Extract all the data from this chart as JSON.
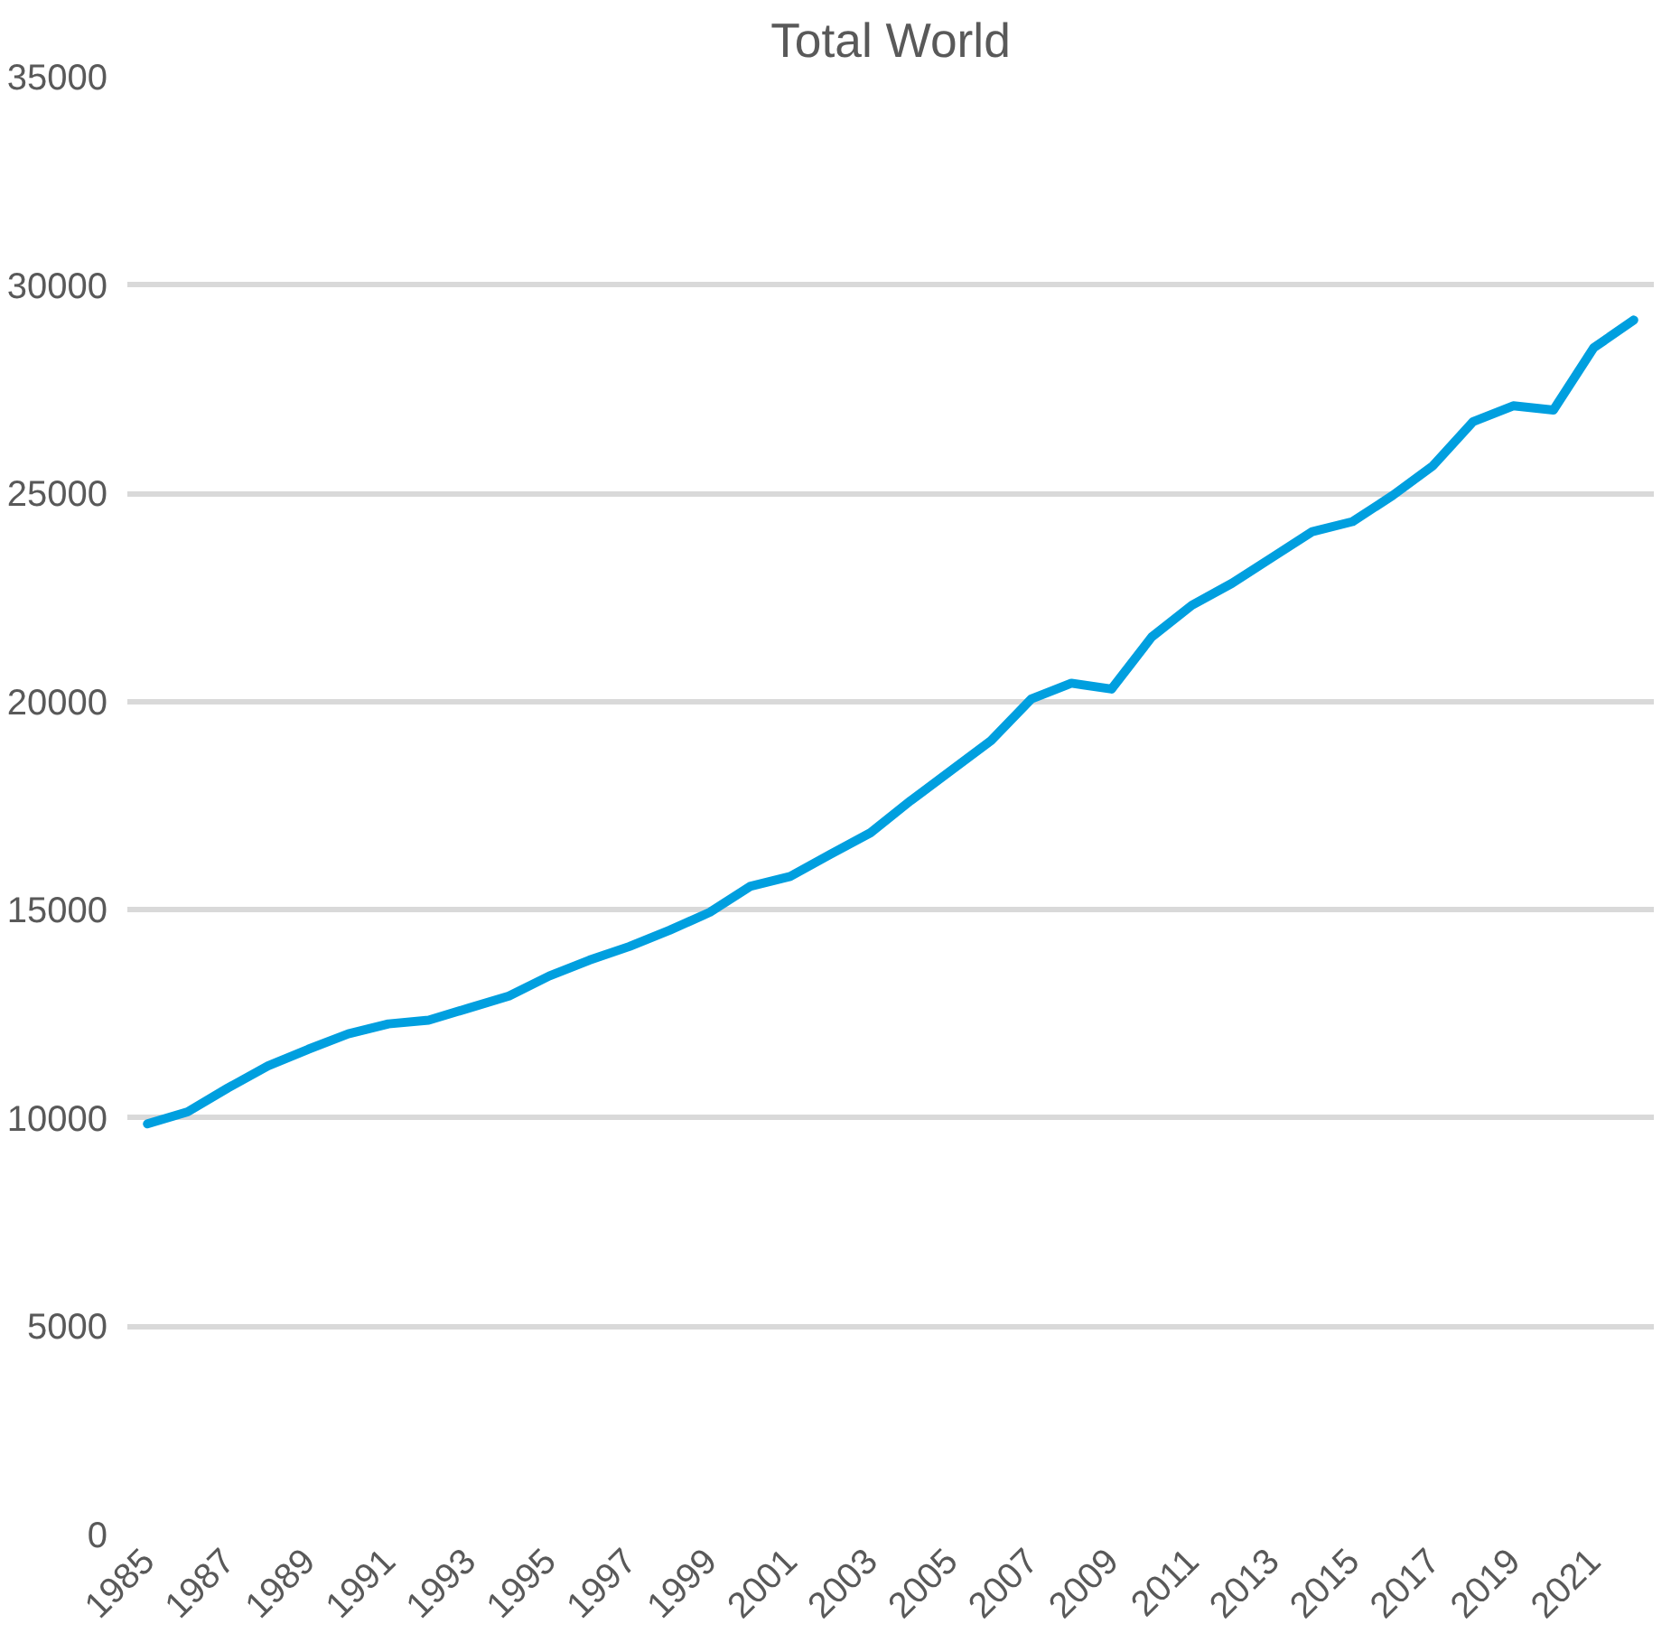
{
  "chart_data": {
    "type": "line",
    "title": "Total World",
    "categories": [
      "1985",
      null,
      "1987",
      null,
      "1989",
      null,
      "1991",
      null,
      "1993",
      null,
      "1995",
      null,
      "1997",
      null,
      "1999",
      null,
      "2001",
      null,
      "2003",
      null,
      "2005",
      null,
      "2007",
      null,
      "2009",
      null,
      "2011",
      null,
      "2013",
      null,
      "2015",
      null,
      "2017",
      null,
      "2019",
      null,
      "2021",
      null
    ],
    "series": [
      {
        "color": "#009fdf",
        "values": [
          9860,
          10150,
          10720,
          11250,
          11650,
          12020,
          12260,
          12350,
          12640,
          12930,
          13410,
          13790,
          14120,
          14510,
          14940,
          15560,
          15800,
          16330,
          16850,
          17620,
          18340,
          19060,
          20060,
          20440,
          20300,
          21550,
          22310,
          22840,
          23460,
          24080,
          24320,
          24950,
          25660,
          26720,
          27100,
          27000,
          28490,
          29160
        ]
      }
    ],
    "ylim": [
      0,
      35000
    ],
    "yticks": [
      0,
      5000,
      10000,
      15000,
      20000,
      25000,
      30000,
      35000
    ],
    "grid": "y",
    "marker": "none",
    "line_style": "solid"
  }
}
